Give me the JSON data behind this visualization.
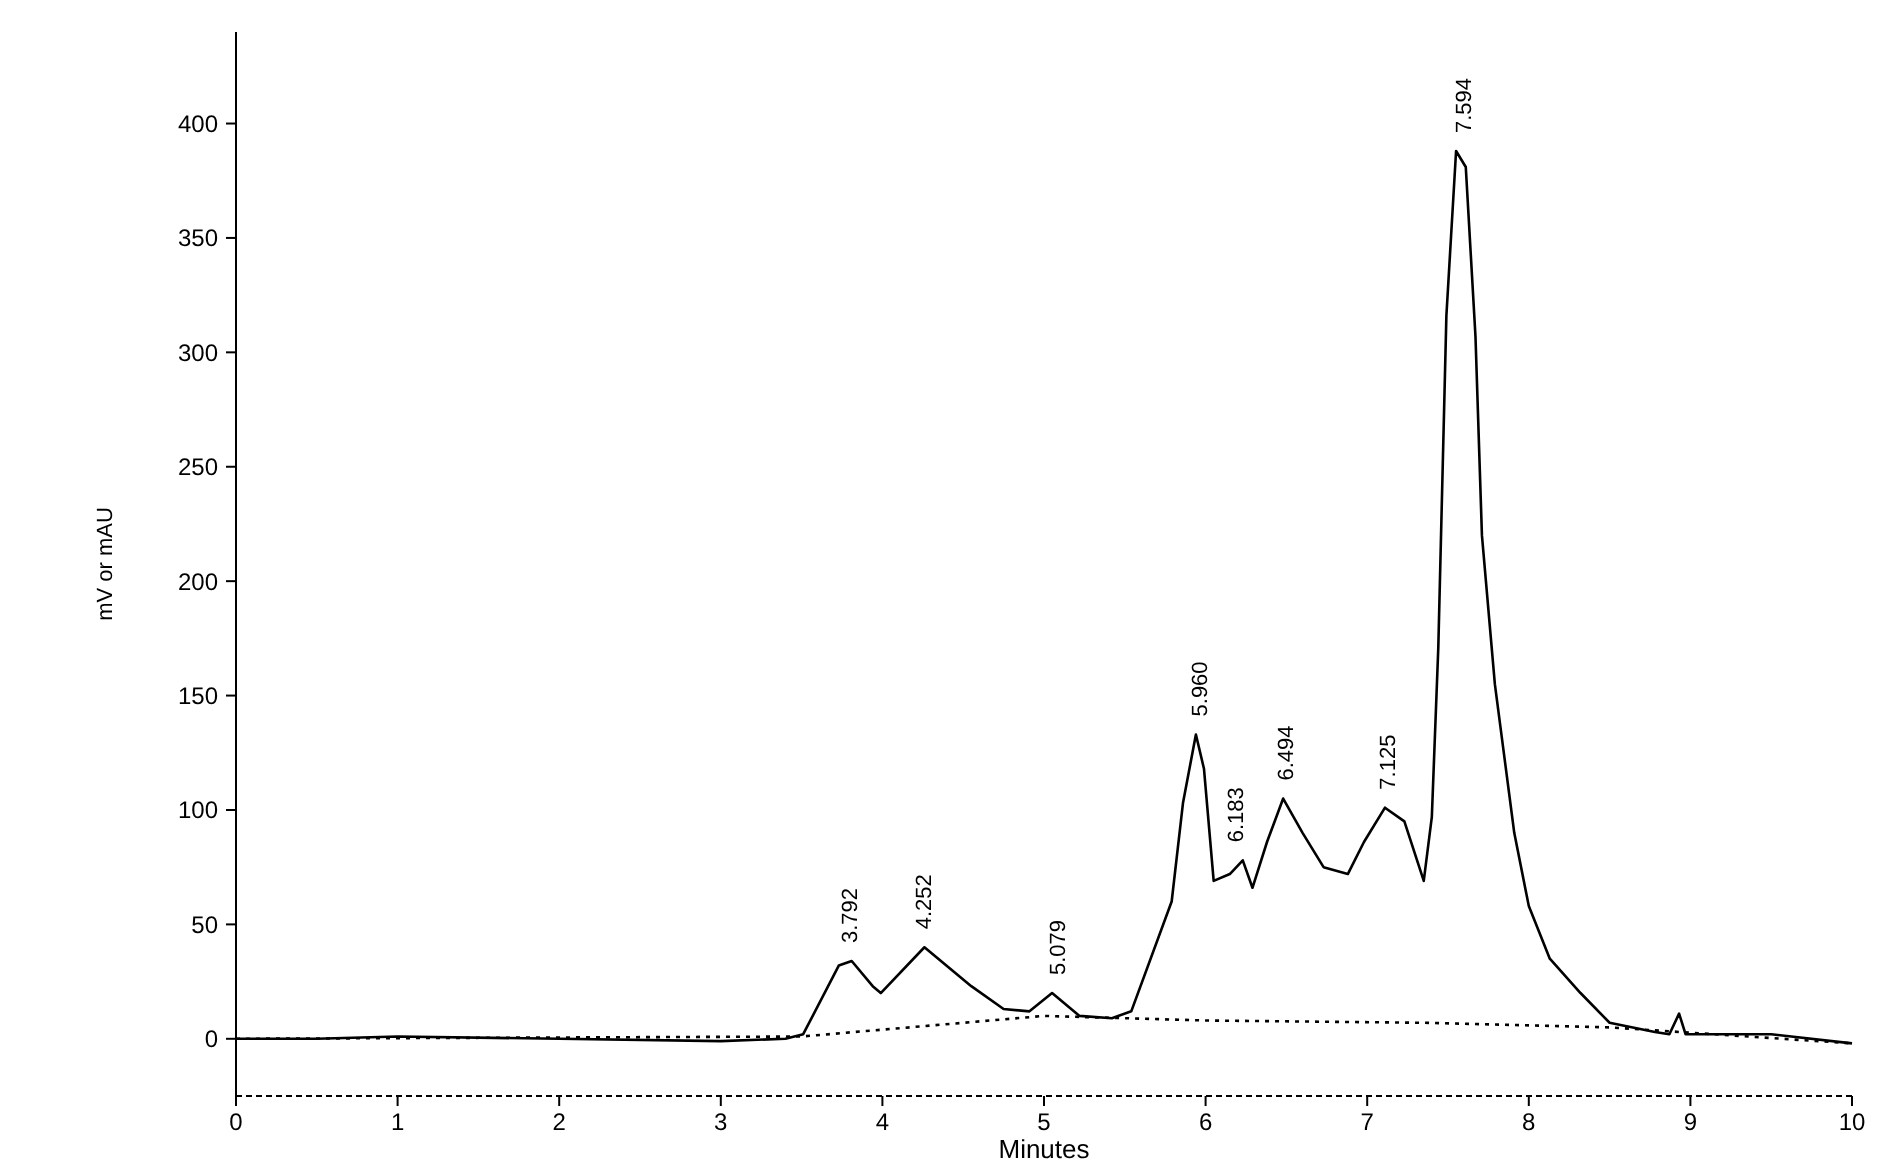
{
  "chart_data": {
    "type": "line",
    "xlabel": "Minutes",
    "ylabel": "mV or mAU",
    "xlim": [
      0,
      10
    ],
    "ylim": [
      -25,
      440
    ],
    "xticks": [
      0,
      1,
      2,
      3,
      4,
      5,
      6,
      7,
      8,
      9,
      10
    ],
    "yticks": [
      0,
      50,
      100,
      150,
      200,
      250,
      300,
      350,
      400
    ],
    "grid": false,
    "series": [
      {
        "color": "#000000",
        "line_style": "solid",
        "x": [
          0,
          0.5,
          1,
          2,
          3,
          3.4,
          3.51,
          3.73,
          3.81,
          3.94,
          3.99,
          4.26,
          4.55,
          4.75,
          4.91,
          5.05,
          5.22,
          5.42,
          5.54,
          5.79,
          5.86,
          5.94,
          5.99,
          6.05,
          6.15,
          6.23,
          6.29,
          6.38,
          6.48,
          6.6,
          6.73,
          6.88,
          6.98,
          7.11,
          7.23,
          7.35,
          7.4,
          7.44,
          7.49,
          7.55,
          7.61,
          7.67,
          7.71,
          7.79,
          7.91,
          8,
          8.13,
          8.32,
          8.5,
          8.78,
          8.87,
          8.93,
          8.97,
          9.5,
          10
        ],
        "values": [
          0,
          0,
          1,
          0,
          -1,
          0,
          2,
          32,
          34,
          23,
          20,
          40,
          23,
          13,
          12,
          20,
          10,
          9,
          12,
          60,
          103,
          133,
          118,
          69,
          72,
          78,
          66,
          86,
          105,
          90,
          75,
          72,
          86,
          101,
          95,
          69,
          97,
          171,
          316,
          388,
          381,
          307,
          220,
          155,
          90,
          58,
          35,
          20,
          7,
          3,
          2,
          11,
          2,
          2,
          -2
        ]
      },
      {
        "color": "#000000",
        "line_style": "dotted",
        "x": [
          0,
          3.5,
          4,
          5,
          6,
          7.35,
          8.5,
          10
        ],
        "values": [
          0,
          1,
          4,
          10,
          8,
          7,
          5,
          -2
        ]
      }
    ],
    "annotations": [
      {
        "text": "3.792",
        "x": 3.792,
        "y": 34
      },
      {
        "text": "4.252",
        "x": 4.252,
        "y": 40
      },
      {
        "text": "5.079",
        "x": 5.079,
        "y": 20
      },
      {
        "text": "5.960",
        "x": 5.96,
        "y": 133
      },
      {
        "text": "6.183",
        "x": 6.183,
        "y": 78
      },
      {
        "text": "6.494",
        "x": 6.494,
        "y": 105
      },
      {
        "text": "7.125",
        "x": 7.125,
        "y": 101
      },
      {
        "text": "7.594",
        "x": 7.594,
        "y": 388
      }
    ]
  }
}
